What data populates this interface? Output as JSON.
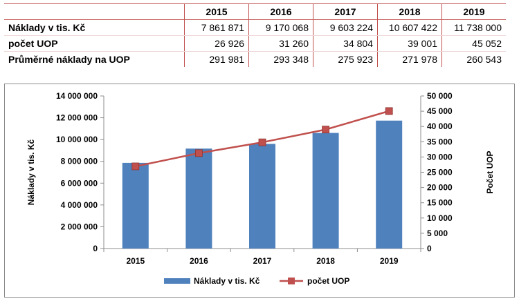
{
  "table": {
    "years": [
      "2015",
      "2016",
      "2017",
      "2018",
      "2019"
    ],
    "rows": [
      {
        "label": "Náklady v tis. Kč",
        "values": [
          "7 861 871",
          "9 170 068",
          "9 603 224",
          "10 607 422",
          "11 738 000"
        ]
      },
      {
        "label": "počet UOP",
        "values": [
          "26 926",
          "31 260",
          "34 804",
          "39 001",
          "45 052"
        ]
      },
      {
        "label": "Průměrné náklady na UOP",
        "values": [
          "291 981",
          "293 348",
          "275 923",
          "271 978",
          "260 543"
        ]
      }
    ]
  },
  "chart_data": {
    "type": "bar",
    "categories": [
      "2015",
      "2016",
      "2017",
      "2018",
      "2019"
    ],
    "series": [
      {
        "name": "Náklady v tis. Kč",
        "type": "bar",
        "axis": "left",
        "color": "#4f81bd",
        "values": [
          7861871,
          9170068,
          9603224,
          10607422,
          11738000
        ]
      },
      {
        "name": "počet UOP",
        "type": "line",
        "axis": "right",
        "color": "#c0504d",
        "values": [
          26926,
          31260,
          34804,
          39001,
          45052
        ]
      }
    ],
    "ylabel": "Náklady v tis. Kč",
    "y2label": "Počet UOP",
    "ylim": [
      0,
      14000000
    ],
    "y2lim": [
      0,
      50000
    ],
    "yticks": [
      "0",
      "2 000 000",
      "4 000 000",
      "6 000 000",
      "8 000 000",
      "10 000 000",
      "12 000 000",
      "14 000 000"
    ],
    "y2ticks": [
      "0",
      "5 000",
      "10 000",
      "15 000",
      "20 000",
      "25 000",
      "30 000",
      "35 000",
      "40 000",
      "45 000",
      "50 000"
    ],
    "legend": "bottom",
    "grid": false
  }
}
